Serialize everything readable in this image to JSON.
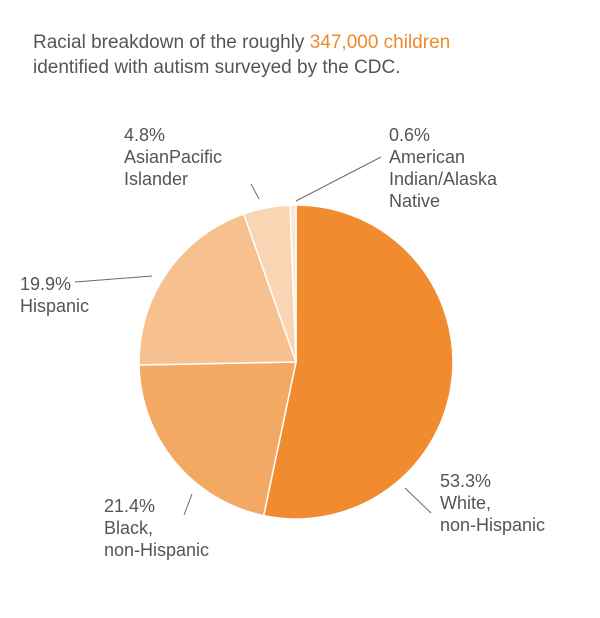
{
  "chart_data": {
    "type": "pie",
    "title_prefix": "Racial breakdown of the roughly ",
    "title_highlight": "347,000 children",
    "title_suffix": "identified with autism surveyed by the CDC.",
    "start_angle_deg": 0,
    "direction": "clockwise",
    "slices": [
      {
        "value": 53.3,
        "pct_label": "53.3%",
        "name_lines": [
          "White,",
          "non-Hispanic"
        ],
        "color": "#f08c2f"
      },
      {
        "value": 21.4,
        "pct_label": "21.4%",
        "name_lines": [
          "Black,",
          "non-Hispanic"
        ],
        "color": "#f3a864"
      },
      {
        "value": 19.9,
        "pct_label": "19.9%",
        "name_lines": [
          "Hispanic"
        ],
        "color": "#f6c08f"
      },
      {
        "value": 4.8,
        "pct_label": "4.8%",
        "name_lines": [
          "AsianPacific",
          "Islander"
        ],
        "color": "#f9d5b3"
      },
      {
        "value": 0.6,
        "pct_label": "0.6%",
        "name_lines": [
          "American",
          "Indian/Alaska",
          "Native"
        ],
        "color": "#fbe6d3"
      }
    ]
  }
}
